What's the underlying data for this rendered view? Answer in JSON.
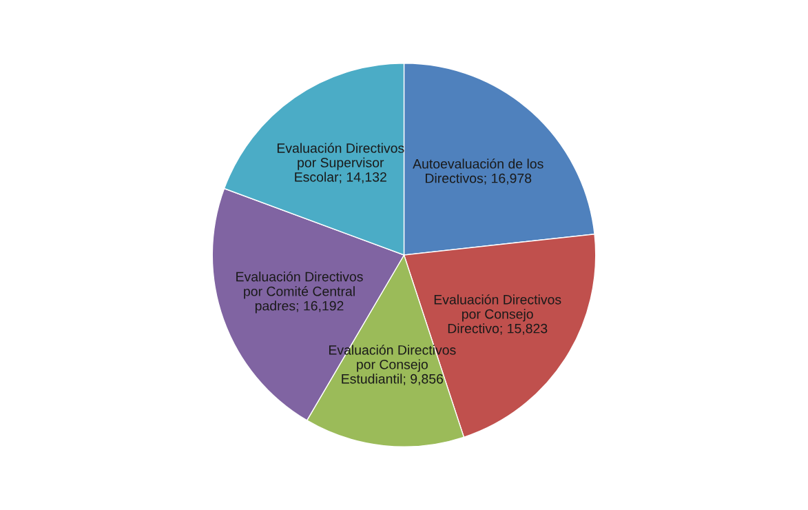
{
  "chart_data": {
    "type": "pie",
    "categories": [
      "Autoevaluación de los\nDirectivos",
      "Evaluación Directivos\npor Consejo\nDirectivo",
      "Evaluación Directivos\npor Consejo\nEstudiantil",
      "Evaluación Directivos\npor Comité Central\npadres",
      "Evaluación Directivos\npor Supervisor\nEscolar"
    ],
    "values": [
      16978,
      15823,
      9856,
      16192,
      14132
    ],
    "value_labels": [
      "16,978",
      "15,823",
      "9,856",
      "16,192",
      "14,132"
    ],
    "colors": [
      "#4f81bd",
      "#c0504d",
      "#9bbb59",
      "#8064a2",
      "#4bacc6"
    ],
    "legend": false
  }
}
